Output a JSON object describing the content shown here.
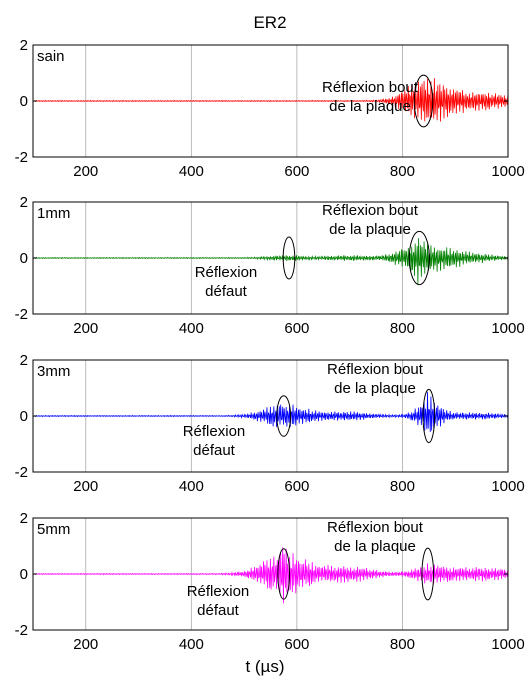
{
  "chart_data": {
    "type": "line",
    "title": "ER2",
    "xlabel": "t (µs)",
    "ylabel": "",
    "xlim": [
      100,
      1000
    ],
    "ylim": [
      -2,
      2
    ],
    "xticks": [
      200,
      400,
      600,
      800,
      1000
    ],
    "yticks": [
      -2,
      0,
      2
    ],
    "grid": "vertical",
    "panels": [
      {
        "label": "sain",
        "color": "#ff0000",
        "series": [
          {
            "envelope_bursts": [
              {
                "center": 840,
                "width": 48,
                "amplitude": 0.75
              },
              {
                "center": 905,
                "width": 60,
                "amplitude": 0.35
              },
              {
                "center": 975,
                "width": 40,
                "amplitude": 0.22
              }
            ],
            "peak": {
              "x": 840,
              "y_max": 1.0,
              "y_min": -1.0
            }
          }
        ],
        "annotations": [
          {
            "lines": [
              "Réflexion bout",
              "de la plaque"
            ],
            "ellipse_center": [
              840,
              0
            ],
            "ellipse_size": [
              35,
              1.85
            ]
          }
        ]
      },
      {
        "label": "1mm",
        "color": "#008000",
        "series": [
          {
            "envelope_bursts": [
              {
                "center": 580,
                "width": 40,
                "amplitude": 0.1
              },
              {
                "center": 700,
                "width": 60,
                "amplitude": 0.09
              },
              {
                "center": 830,
                "width": 45,
                "amplitude": 0.55
              },
              {
                "center": 900,
                "width": 70,
                "amplitude": 0.28
              }
            ],
            "peak": {
              "x": 830,
              "y_max": 1.1,
              "y_min": -1.1
            }
          }
        ],
        "annotations": [
          {
            "lines": [
              "Réflexion",
              "défaut"
            ],
            "ellipse_center": [
              585,
              0
            ],
            "ellipse_size": [
              22,
              1.5
            ]
          },
          {
            "lines": [
              "Réflexion bout",
              "de la plaque"
            ],
            "ellipse_center": [
              832,
              0
            ],
            "ellipse_size": [
              38,
              1.9
            ]
          }
        ]
      },
      {
        "label": "3mm",
        "color": "#0000ff",
        "series": [
          {
            "envelope_bursts": [
              {
                "center": 575,
                "width": 50,
                "amplitude": 0.48
              },
              {
                "center": 690,
                "width": 65,
                "amplitude": 0.16
              },
              {
                "center": 850,
                "width": 30,
                "amplitude": 0.55
              },
              {
                "center": 930,
                "width": 70,
                "amplitude": 0.12
              }
            ],
            "peak": {
              "x": 850,
              "y_max": 0.95,
              "y_min": -0.85
            }
          }
        ],
        "annotations": [
          {
            "lines": [
              "Réflexion",
              "défaut"
            ],
            "ellipse_center": [
              575,
              0
            ],
            "ellipse_size": [
              26,
              1.45
            ]
          },
          {
            "lines": [
              "Réflexion bout",
              "de la plaque"
            ],
            "ellipse_center": [
              850,
              0
            ],
            "ellipse_size": [
              22,
              1.9
            ]
          }
        ]
      },
      {
        "label": "5mm",
        "color": "#ff00ff",
        "series": [
          {
            "envelope_bursts": [
              {
                "center": 575,
                "width": 55,
                "amplitude": 0.8
              },
              {
                "center": 690,
                "width": 70,
                "amplitude": 0.3
              },
              {
                "center": 855,
                "width": 40,
                "amplitude": 0.35
              },
              {
                "center": 950,
                "width": 70,
                "amplitude": 0.25
              }
            ],
            "peak": {
              "x": 575,
              "y_max": 1.2,
              "y_min": -1.2
            }
          }
        ],
        "annotations": [
          {
            "lines": [
              "Réflexion",
              "défaut"
            ],
            "ellipse_center": [
              575,
              0
            ],
            "ellipse_size": [
              22,
              1.8
            ]
          },
          {
            "lines": [
              "Réflexion bout",
              "de la plaque"
            ],
            "ellipse_center": [
              848,
              0
            ],
            "ellipse_size": [
              22,
              1.85
            ]
          }
        ]
      }
    ]
  }
}
